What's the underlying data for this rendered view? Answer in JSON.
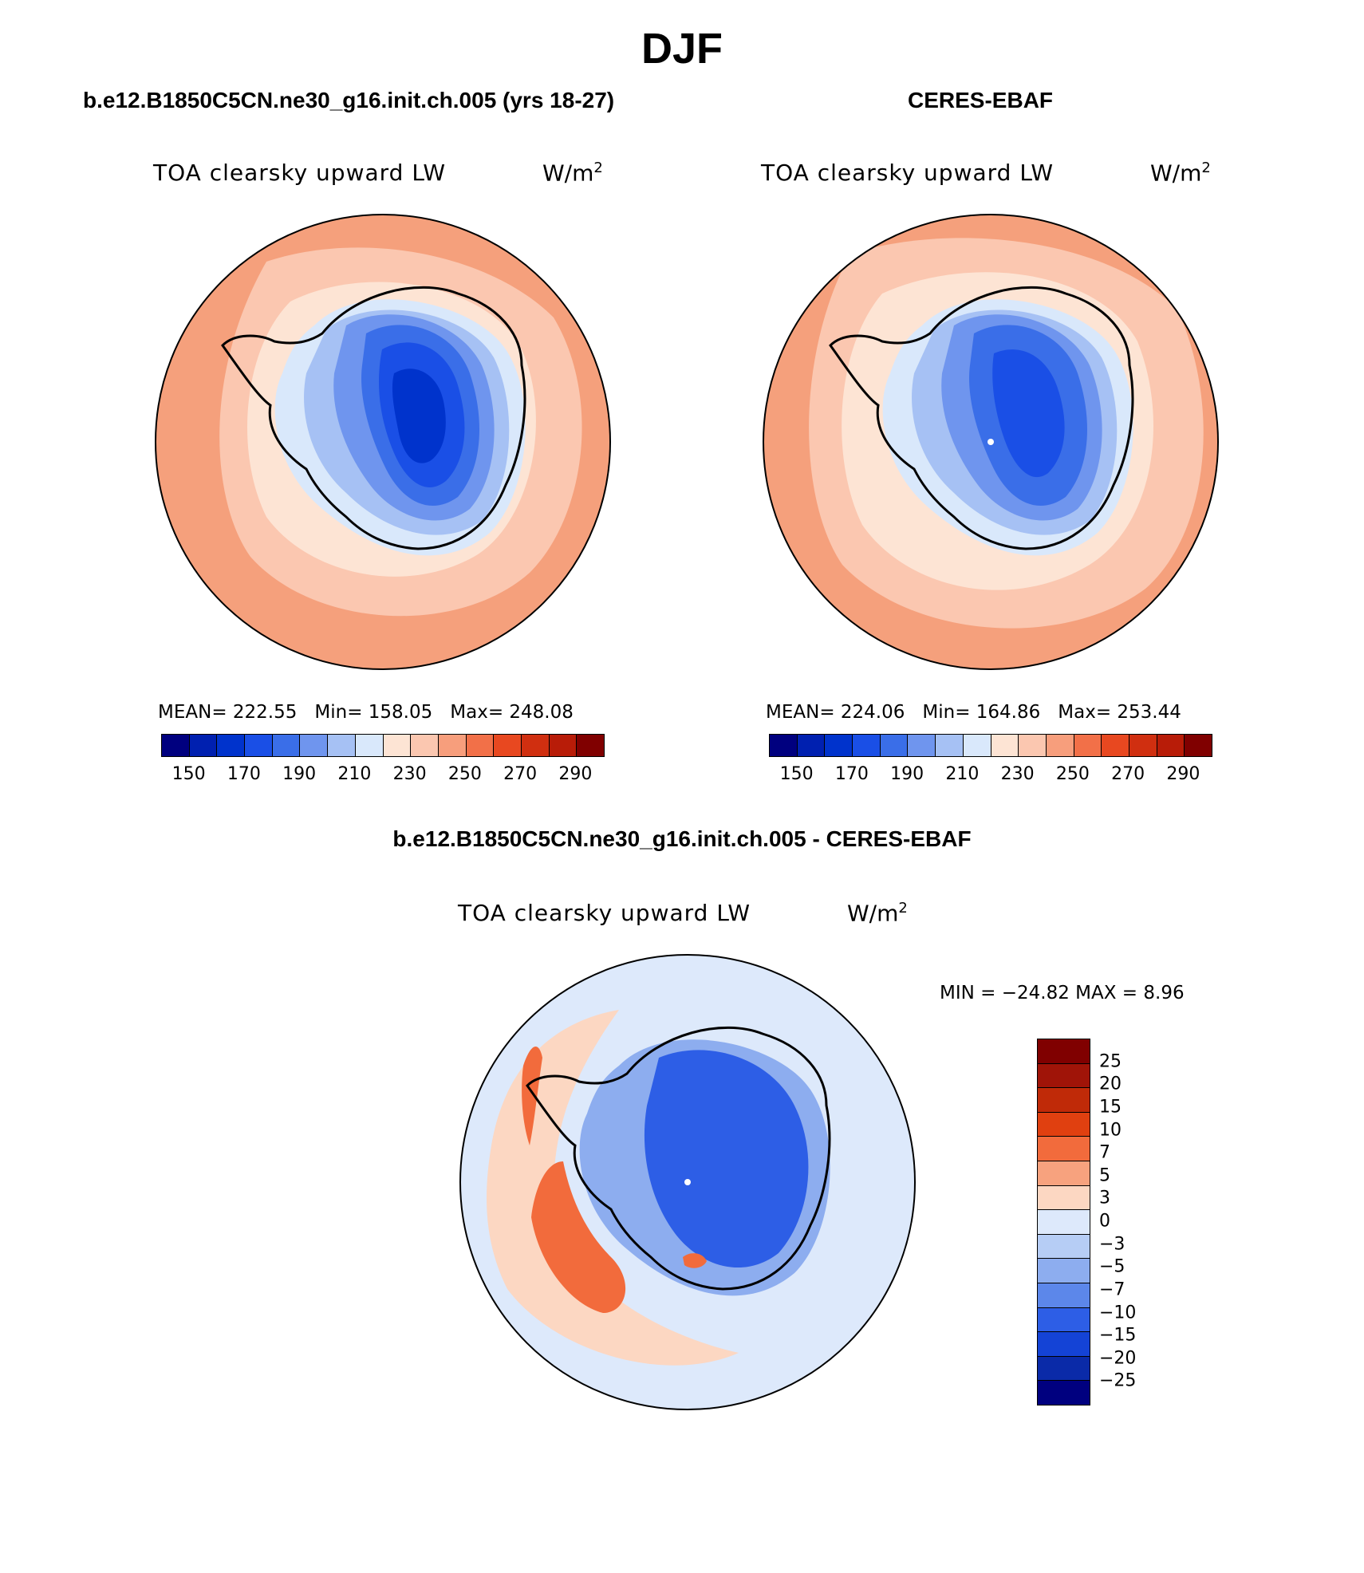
{
  "title": "DJF",
  "panels": {
    "model": {
      "title": "b.e12.B1850C5CN.ne30_g16.init.ch.005 (yrs 18-27)",
      "variable": "TOA clearsky upward LW",
      "units_base": "W/m",
      "units_exp": "2",
      "stats": {
        "mean": "MEAN= 222.55",
        "min": "Min= 158.05",
        "max": "Max= 248.08"
      }
    },
    "obs": {
      "title": "CERES-EBAF",
      "variable": "TOA clearsky upward LW",
      "units_base": "W/m",
      "units_exp": "2",
      "stats": {
        "mean": "MEAN= 224.06",
        "min": "Min= 164.86",
        "max": "Max= 253.44"
      }
    },
    "diff": {
      "title": "b.e12.B1850C5CN.ne30_g16.init.ch.005 - CERES-EBAF",
      "variable": "TOA clearsky upward LW",
      "units_base": "W/m",
      "units_exp": "2",
      "minmax": "MIN = −24.82 MAX =    8.96"
    }
  },
  "colorbar_main": {
    "colors": [
      "#00007f",
      "#0020b0",
      "#0033cc",
      "#1a4fe6",
      "#3a6ee8",
      "#6f95ee",
      "#a6c1f4",
      "#d9e8fb",
      "#fde4d4",
      "#fbc7b0",
      "#f79e7c",
      "#f27048",
      "#e84820",
      "#d02f10",
      "#b81c08",
      "#800000"
    ],
    "ticks": [
      "150",
      "170",
      "190",
      "210",
      "230",
      "250",
      "270",
      "290"
    ]
  },
  "colorbar_diff": {
    "colors": [
      "#800000",
      "#a01408",
      "#c02a08",
      "#e04010",
      "#f26b3c",
      "#f7a27e",
      "#fcd7c2",
      "#dde9fb",
      "#b6cdf5",
      "#8dadef",
      "#5c87ea",
      "#2d5ee6",
      "#1443d6",
      "#0a2aa8",
      "#00007f"
    ],
    "ticks": [
      "25",
      "20",
      "15",
      "10",
      "7",
      "5",
      "3",
      "0",
      "−3",
      "−5",
      "−7",
      "−10",
      "−15",
      "−20",
      "−25"
    ]
  },
  "map_fills": {
    "ocean_outer": "#f5a07c",
    "ocean_mid": "#fbc7b0",
    "ocean_inner": "#fde4d4",
    "ice_edge": "#d9e8fb",
    "ice_1": "#a6c1f4",
    "ice_2": "#6f95ee",
    "ice_3": "#3a6ee8",
    "ice_4": "#1a4fe6",
    "ice_core": "#0033cc",
    "diff_bg": "#dde9fb",
    "diff_warm": "#fcd7c2",
    "diff_hot": "#f26b3c",
    "diff_cold1": "#8dadef",
    "diff_cold2": "#2d5ee6"
  }
}
